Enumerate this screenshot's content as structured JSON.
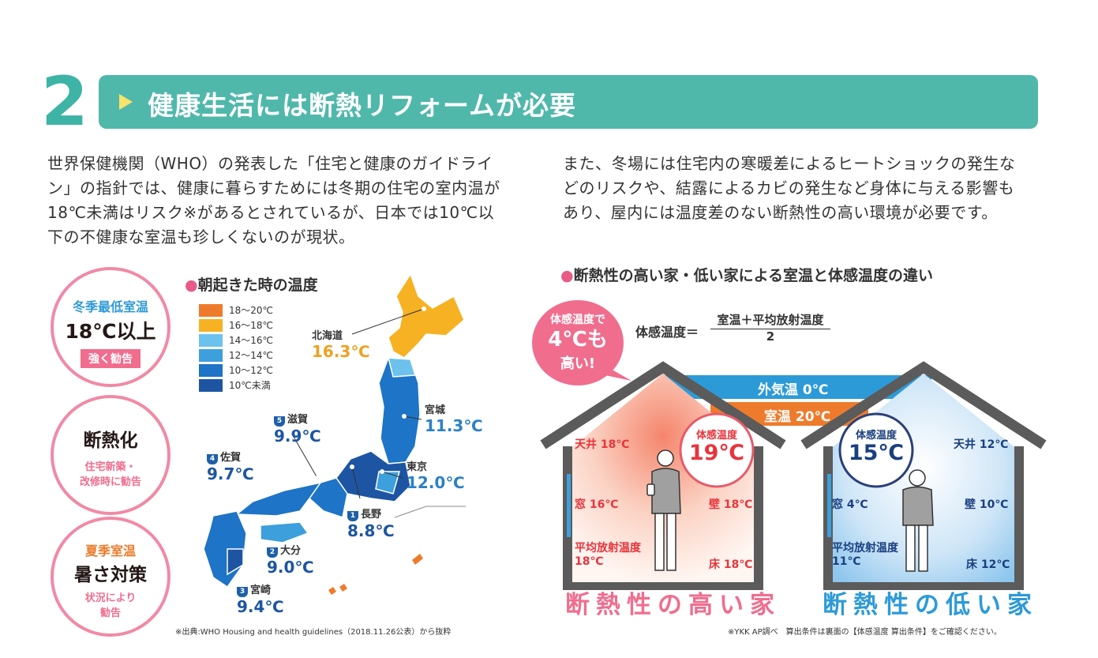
{
  "section": {
    "number": "2",
    "title": "健康生活には断熱リフォームが必要"
  },
  "intro_left": [
    "世界保健機関（WHO）の発表した「住宅と健康のガイドライ",
    "ン」の指針では、健康に暮らすためには冬期の住宅の室内温が",
    "18℃未満はリスク※があるとされているが、日本では10℃以",
    "下の不健康な室温も珍しくないのが現状。"
  ],
  "intro_right": [
    "また、冬場には住宅内の寒暖差によるヒートショックの発生な",
    "どのリスクや、結露によるカビの発生など身体に与える影響も",
    "あり、屋内には温度差のない断熱性の高い環境が必要です。"
  ],
  "circles": [
    {
      "line1": "冬季最低室温",
      "line2": "18℃以上",
      "tag": "強く勧告"
    },
    {
      "line1": "断熱化",
      "line2": "住宅新築・",
      "line3": "改修時に勧告"
    },
    {
      "line1": "夏季室温",
      "line2": "暑さ対策",
      "line3": "状況により",
      "line4": "勧告"
    }
  ],
  "map": {
    "title": "朝起きた時の温度",
    "legend": [
      {
        "label": "18～20℃",
        "color": "#ee7b2b"
      },
      {
        "label": "16～18℃",
        "color": "#f6b223"
      },
      {
        "label": "14～16℃",
        "color": "#6cc2ec"
      },
      {
        "label": "12～14℃",
        "color": "#3d9fdc"
      },
      {
        "label": "10～12℃",
        "color": "#1e74c6"
      },
      {
        "label": "10℃未満",
        "color": "#1d55a3"
      }
    ],
    "cities": [
      {
        "name": "北海道",
        "value": "16.3℃",
        "color": "#f0a020"
      },
      {
        "name": "宮城",
        "value": "11.3℃",
        "color": "#2c80c8"
      },
      {
        "name": "東京",
        "value": "12.0℃",
        "color": "#2c80c8"
      },
      {
        "name": "滋賀",
        "rank": "5",
        "value": "9.9℃",
        "color": "#1d55a3"
      },
      {
        "name": "佐賀",
        "rank": "4",
        "value": "9.7℃",
        "color": "#1d55a3"
      },
      {
        "name": "長野",
        "rank": "1",
        "value": "8.8℃",
        "color": "#1d55a3"
      },
      {
        "name": "大分",
        "rank": "2",
        "value": "9.0℃",
        "color": "#1d55a3"
      },
      {
        "name": "宮崎",
        "rank": "3",
        "value": "9.4℃",
        "color": "#1d55a3"
      }
    ],
    "source": "※出典:WHO Housing and health guidelines（2018.11.26公表）から抜粋"
  },
  "comparison": {
    "title": "断熱性の高い家・低い家による室温と体感温度の違い",
    "bubble": {
      "line1": "体感温度で",
      "line2": "4℃も",
      "line3": "高い!"
    },
    "formula": {
      "lhs": "体感温度＝",
      "numerator": "室温＋平均放射温度",
      "denominator": "2"
    },
    "outside": "外気温 0℃",
    "room": "室温 20℃",
    "high": {
      "ceiling": "天井 18℃",
      "window": "窓 16℃",
      "wall": "壁 18℃",
      "radiant": "平均放射温度",
      "radiant_val": "18℃",
      "floor": "床 18℃",
      "feel_label": "体感温度",
      "feel_val": "19℃",
      "name": "断熱性の高い家"
    },
    "low": {
      "ceiling": "天井 12℃",
      "window": "窓 4℃",
      "wall": "壁 10℃",
      "radiant": "平均放射温度",
      "radiant_val": "11℃",
      "floor": "床 12℃",
      "feel_label": "体感温度",
      "feel_val": "15℃",
      "name": "断熱性の低い家"
    },
    "note": "※YKK AP調べ　算出条件は裏面の【体感温度 算出条件】をご確認ください。",
    "colors": {
      "warm": "#e8343c",
      "cold": "#1a3f80",
      "pink": "#f06d8e",
      "teal": "#50b8ab"
    }
  }
}
